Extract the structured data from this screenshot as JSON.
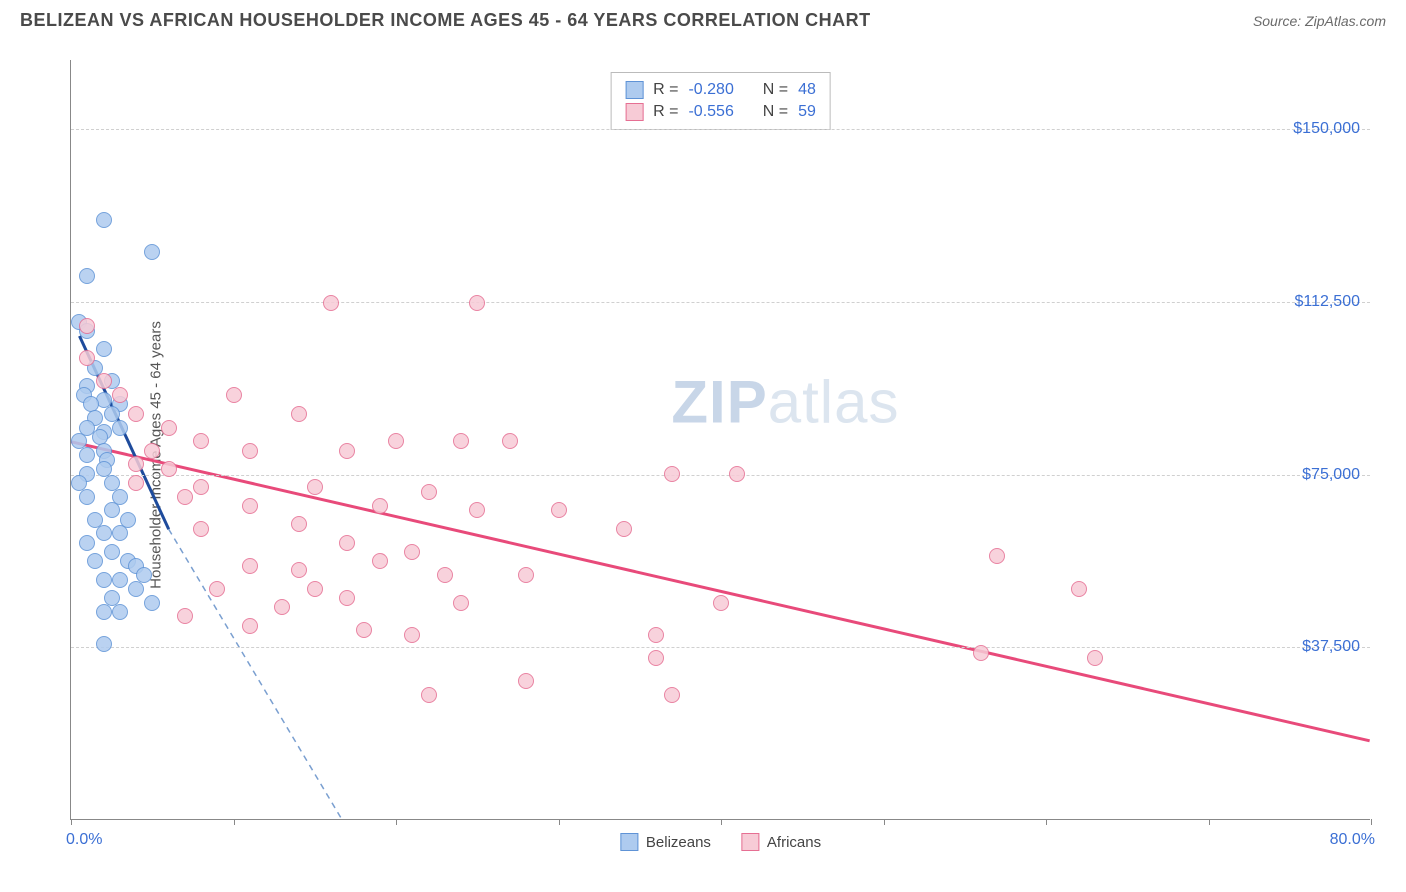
{
  "header": {
    "title": "BELIZEAN VS AFRICAN HOUSEHOLDER INCOME AGES 45 - 64 YEARS CORRELATION CHART",
    "source_prefix": "Source: ",
    "source_name": "ZipAtlas.com"
  },
  "chart": {
    "type": "scatter",
    "y_axis_title": "Householder Income Ages 45 - 64 years",
    "xlim": [
      0,
      80
    ],
    "ylim": [
      0,
      165000
    ],
    "x_label_min": "0.0%",
    "x_label_max": "80.0%",
    "x_ticks": [
      0,
      10,
      20,
      30,
      40,
      50,
      60,
      70,
      80
    ],
    "y_ticks": [
      {
        "v": 37500,
        "label": "$37,500"
      },
      {
        "v": 75000,
        "label": "$75,000"
      },
      {
        "v": 112500,
        "label": "$112,500"
      },
      {
        "v": 150000,
        "label": "$150,000"
      }
    ],
    "background_color": "#ffffff",
    "grid_color": "#d0d0d0",
    "watermark": {
      "bold": "ZIP",
      "rest": "atlas"
    },
    "series": [
      {
        "key": "belizeans",
        "label": "Belizeans",
        "fill": "#aecbef",
        "stroke": "#5f93d6",
        "line_color": "#1e4b9c",
        "line_dash_color": "#7a9fd0",
        "R": "-0.280",
        "N": "48",
        "trend": {
          "x1": 0.5,
          "y1": 105000,
          "x2": 6,
          "y2": 63000
        },
        "trend_ext": {
          "x1": 6,
          "y1": 63000,
          "x2": 17.5,
          "y2": -5000
        },
        "points": [
          [
            2,
            130000
          ],
          [
            1,
            118000
          ],
          [
            5,
            123000
          ],
          [
            0.5,
            108000
          ],
          [
            1,
            106000
          ],
          [
            2,
            102000
          ],
          [
            1.5,
            98000
          ],
          [
            2.5,
            95000
          ],
          [
            1,
            94000
          ],
          [
            0.8,
            92000
          ],
          [
            2,
            91000
          ],
          [
            1.2,
            90000
          ],
          [
            3,
            90000
          ],
          [
            1.5,
            87000
          ],
          [
            2.5,
            88000
          ],
          [
            1,
            85000
          ],
          [
            2,
            84000
          ],
          [
            0.5,
            82000
          ],
          [
            1.8,
            83000
          ],
          [
            3,
            85000
          ],
          [
            2,
            80000
          ],
          [
            1,
            79000
          ],
          [
            2.2,
            78000
          ],
          [
            1,
            75000
          ],
          [
            2,
            76000
          ],
          [
            0.5,
            73000
          ],
          [
            2.5,
            73000
          ],
          [
            1,
            70000
          ],
          [
            3,
            70000
          ],
          [
            2.5,
            67000
          ],
          [
            1.5,
            65000
          ],
          [
            3.5,
            65000
          ],
          [
            2,
            62000
          ],
          [
            3,
            62000
          ],
          [
            1,
            60000
          ],
          [
            2.5,
            58000
          ],
          [
            1.5,
            56000
          ],
          [
            3.5,
            56000
          ],
          [
            4,
            55000
          ],
          [
            2,
            52000
          ],
          [
            3,
            52000
          ],
          [
            4.5,
            53000
          ],
          [
            2.5,
            48000
          ],
          [
            4,
            50000
          ],
          [
            2,
            45000
          ],
          [
            3,
            45000
          ],
          [
            5,
            47000
          ],
          [
            2,
            38000
          ]
        ]
      },
      {
        "key": "africans",
        "label": "Africans",
        "fill": "#f7cbd6",
        "stroke": "#e66f93",
        "line_color": "#e84a7a",
        "R": "-0.556",
        "N": "59",
        "trend": {
          "x1": 0,
          "y1": 82000,
          "x2": 80,
          "y2": 17000
        },
        "points": [
          [
            16,
            112000
          ],
          [
            25,
            112000
          ],
          [
            1,
            107000
          ],
          [
            1,
            100000
          ],
          [
            2,
            95000
          ],
          [
            3,
            92000
          ],
          [
            10,
            92000
          ],
          [
            4,
            88000
          ],
          [
            14,
            88000
          ],
          [
            6,
            85000
          ],
          [
            8,
            82000
          ],
          [
            20,
            82000
          ],
          [
            24,
            82000
          ],
          [
            27,
            82000
          ],
          [
            5,
            80000
          ],
          [
            11,
            80000
          ],
          [
            17,
            80000
          ],
          [
            4,
            77000
          ],
          [
            6,
            76000
          ],
          [
            4,
            73000
          ],
          [
            8,
            72000
          ],
          [
            37,
            75000
          ],
          [
            41,
            75000
          ],
          [
            15,
            72000
          ],
          [
            22,
            71000
          ],
          [
            7,
            70000
          ],
          [
            11,
            68000
          ],
          [
            19,
            68000
          ],
          [
            25,
            67000
          ],
          [
            30,
            67000
          ],
          [
            14,
            64000
          ],
          [
            8,
            63000
          ],
          [
            34,
            63000
          ],
          [
            17,
            60000
          ],
          [
            21,
            58000
          ],
          [
            11,
            55000
          ],
          [
            14,
            54000
          ],
          [
            19,
            56000
          ],
          [
            23,
            53000
          ],
          [
            28,
            53000
          ],
          [
            57,
            57000
          ],
          [
            9,
            50000
          ],
          [
            15,
            50000
          ],
          [
            17,
            48000
          ],
          [
            13,
            46000
          ],
          [
            24,
            47000
          ],
          [
            40,
            47000
          ],
          [
            62,
            50000
          ],
          [
            7,
            44000
          ],
          [
            11,
            42000
          ],
          [
            18,
            41000
          ],
          [
            21,
            40000
          ],
          [
            56,
            36000
          ],
          [
            63,
            35000
          ],
          [
            36,
            35000
          ],
          [
            28,
            30000
          ],
          [
            22,
            27000
          ],
          [
            37,
            27000
          ],
          [
            36,
            40000
          ]
        ]
      }
    ]
  },
  "legend": {
    "stats_label_R": "R =",
    "stats_label_N": "N ="
  }
}
